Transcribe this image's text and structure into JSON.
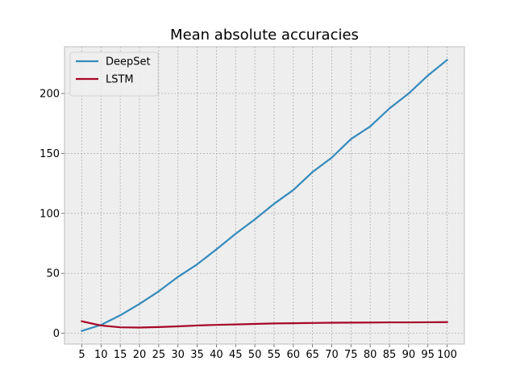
{
  "chart_data": {
    "type": "line",
    "title": "Mean absolute accuracies",
    "xlabel": "",
    "ylabel": "",
    "x": [
      5,
      10,
      15,
      20,
      25,
      30,
      35,
      40,
      45,
      50,
      55,
      60,
      65,
      70,
      75,
      80,
      85,
      90,
      95,
      100
    ],
    "x_ticks": [
      5,
      10,
      15,
      20,
      25,
      30,
      35,
      40,
      45,
      50,
      55,
      60,
      65,
      70,
      75,
      80,
      85,
      90,
      95,
      100
    ],
    "y_ticks": [
      0,
      50,
      100,
      150,
      200
    ],
    "xlim": [
      0.5,
      104.5
    ],
    "ylim": [
      -9,
      239
    ],
    "grid": true,
    "legend_position": "top-left",
    "background_color": "#eeeeee",
    "series": [
      {
        "name": "DeepSet",
        "color": "#348abd",
        "values": [
          2,
          7,
          15,
          24.5,
          35,
          47,
          57.5,
          70,
          83,
          95,
          108,
          119.5,
          134.5,
          146.5,
          162,
          172.5,
          187.5,
          200,
          215,
          228
        ]
      },
      {
        "name": "LSTM",
        "color": "#a60628",
        "values": [
          10,
          6.5,
          5,
          4.8,
          5.2,
          5.8,
          6.5,
          7,
          7.4,
          7.8,
          8.2,
          8.4,
          8.6,
          8.8,
          8.9,
          9,
          9.1,
          9.1,
          9.2,
          9.3
        ]
      }
    ]
  }
}
